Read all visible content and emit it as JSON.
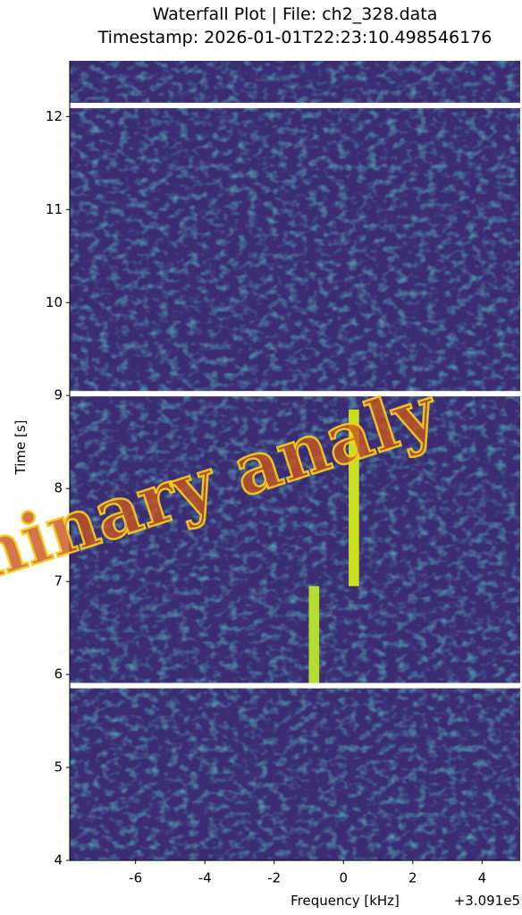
{
  "chart_data": {
    "type": "waterfall",
    "title": "Waterfall Plot | File: ch2_328.data",
    "subtitle": "Timestamp: 2026-01-01T22:23:10.498546176",
    "xlabel": "Frequency [kHz]",
    "ylabel": "Time [s]",
    "x_offset_label": "+3.091e5",
    "watermark": "hinary analy",
    "xlim": [
      -7.9,
      5.1
    ],
    "ylim": [
      4,
      12.6
    ],
    "xticks": [
      -6,
      -4,
      -2,
      0,
      2,
      4
    ],
    "yticks": [
      4,
      5,
      6,
      7,
      8,
      9,
      10,
      11,
      12
    ],
    "background_color": "#3b2c74",
    "breaks": [
      5.88,
      9.02,
      12.12
    ],
    "signals": [
      {
        "x": -0.85,
        "width": 0.3,
        "ystart": 5.85,
        "yend": 6.95,
        "color": "#b5de2b"
      },
      {
        "x": 0.3,
        "width": 0.3,
        "ystart": 6.95,
        "yend": 8.85,
        "color": "#c8e020"
      }
    ]
  }
}
